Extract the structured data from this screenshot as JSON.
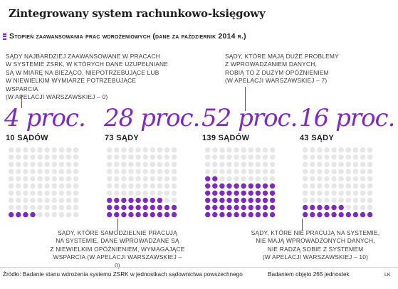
{
  "title": "Zintegrowany system rachunkowo-księgowy",
  "subtitle": "Stopień zaawansowania prac wdrożeniowych (dane za październik 2014 r.)",
  "notes": {
    "top_left": [
      "Sądy najbardziej zaawansowane w pracach",
      "w systemie ZSRK, w których dane uzupełniane",
      "są w miarę na bieżąco, niepotrzebujące lub",
      "w niewielkim wymiarze potrzebujące wsparcia",
      "(w apelacji warszawskiej – 0)"
    ],
    "top_right": [
      "Sądy, które mają duże problemy",
      "z wprowadzaniem danych,",
      "robią to z dużym opóźnieniem",
      "(w apelacji warszawskiej – 7)"
    ],
    "bottom_left": [
      "Sądy, które samodzielnie pracują",
      "na systemie, dane wprowadzane są",
      "z niewielkim opóźnieniem, wymagające",
      "wsparcia (w apelacji warszawskiej – 0)"
    ],
    "bottom_right": [
      "Sądy, które nie pracują na systemie,",
      "nie mają wprowadzonych danych,",
      "nie radzą sobie z systemem",
      "(w apelacji warszawskiej – 10)"
    ]
  },
  "chart_data": {
    "type": "waffle",
    "title": "Stopień zaawansowania prac wdrożeniowych (dane za październik 2014 r.)",
    "unit": "proc.",
    "categories": [
      {
        "percent": 4,
        "percent_label": "4 proc.",
        "courts": 10,
        "courts_label": "10 sądów"
      },
      {
        "percent": 28,
        "percent_label": "28 proc.",
        "courts": 73,
        "courts_label": "73 sądy"
      },
      {
        "percent": 52,
        "percent_label": "52 proc.",
        "courts": 139,
        "courts_label": "139 sądów"
      },
      {
        "percent": 16,
        "percent_label": "16 proc.",
        "courts": 43,
        "courts_label": "43 sądy"
      }
    ],
    "colors": {
      "filled": "#7b2cbf",
      "empty": "#e6e6e6"
    }
  },
  "footer": {
    "source": "Źródło: Badanie stanu wdrożenia systemu ZSRK w jednostkach sądownictwa powszechnego",
    "surveyed": "Badaniem objęto 265 jednostek",
    "credit": "LK"
  }
}
